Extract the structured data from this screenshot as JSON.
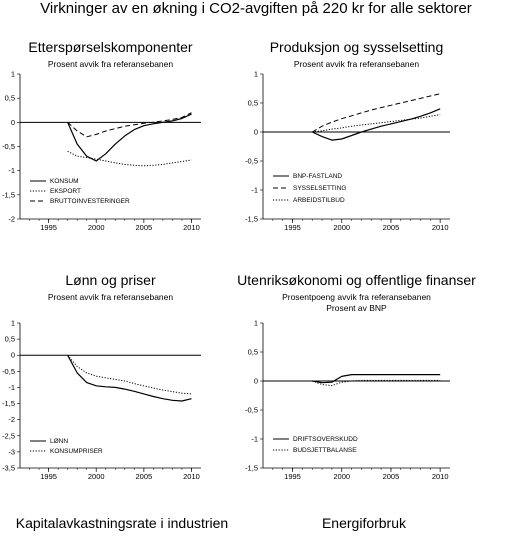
{
  "page_title": "Virkninger av en økning i CO2-avgiften på 220 kr for alle sektorer",
  "bottom_titles": [
    "Kapitalavkastningsrate i industrien",
    "Energiforbruk"
  ],
  "chart_data": [
    {
      "type": "line",
      "title": "Etterspørselskomponenter",
      "subtitle": "Prosent avvik fra referansebanen",
      "subtitle2": "",
      "xlabel": "",
      "ylabel": "",
      "xlim": [
        1992,
        2011
      ],
      "ylim": [
        -2,
        1
      ],
      "yticks": [
        "1",
        "0,5",
        "0",
        "-0,5",
        "-1",
        "-1,5",
        "-2"
      ],
      "ytick_values": [
        1,
        0.5,
        0,
        -0.5,
        -1,
        -1.5,
        -2
      ],
      "xticks": [
        1995,
        2000,
        2005,
        2010
      ],
      "legend_position": "bottom-left",
      "series": [
        {
          "name": "KONSUM",
          "style": "solid",
          "x": [
            1997,
            1998,
            1999,
            2000,
            2001,
            2002,
            2003,
            2004,
            2005,
            2006,
            2007,
            2008,
            2009,
            2010
          ],
          "y": [
            0,
            -0.45,
            -0.7,
            -0.8,
            -0.65,
            -0.45,
            -0.28,
            -0.15,
            -0.07,
            -0.03,
            0,
            0.03,
            0.08,
            0.17
          ]
        },
        {
          "name": "EKSPORT",
          "style": "dotted",
          "x": [
            1997,
            1998,
            1999,
            2000,
            2001,
            2002,
            2003,
            2004,
            2005,
            2006,
            2007,
            2008,
            2009,
            2010
          ],
          "y": [
            -0.6,
            -0.7,
            -0.73,
            -0.76,
            -0.8,
            -0.84,
            -0.87,
            -0.89,
            -0.9,
            -0.89,
            -0.87,
            -0.84,
            -0.81,
            -0.78
          ]
        },
        {
          "name": "BRUTTOINVESTERINGER",
          "style": "dashed",
          "x": [
            1997,
            1998,
            1999,
            2000,
            2001,
            2002,
            2003,
            2004,
            2005,
            2006,
            2007,
            2008,
            2009,
            2010
          ],
          "y": [
            0,
            -0.18,
            -0.3,
            -0.25,
            -0.18,
            -0.13,
            -0.08,
            -0.05,
            -0.02,
            0,
            0.03,
            0.06,
            0.1,
            0.2
          ]
        }
      ]
    },
    {
      "type": "line",
      "title": "Produksjon og sysselsetting",
      "subtitle": "Prosent avvik fra referansebanen",
      "subtitle2": "",
      "xlabel": "",
      "ylabel": "",
      "xlim": [
        1992,
        2011
      ],
      "ylim": [
        -1.5,
        1
      ],
      "yticks": [
        "1",
        "0,5",
        "0",
        "-0,5",
        "-1",
        "-1,5"
      ],
      "ytick_values": [
        1,
        0.5,
        0,
        -0.5,
        -1,
        -1.5
      ],
      "xticks": [
        1995,
        2000,
        2005,
        2010
      ],
      "legend_position": "bottom-left",
      "series": [
        {
          "name": "BNP-FASTLAND",
          "style": "solid",
          "x": [
            1997,
            1998,
            1999,
            2000,
            2001,
            2002,
            2003,
            2004,
            2005,
            2006,
            2007,
            2008,
            2009,
            2010
          ],
          "y": [
            0,
            -0.08,
            -0.14,
            -0.12,
            -0.06,
            0,
            0.05,
            0.1,
            0.14,
            0.18,
            0.22,
            0.27,
            0.33,
            0.4
          ]
        },
        {
          "name": "SYSSELSETTING",
          "style": "dashed",
          "x": [
            1997,
            1998,
            1999,
            2000,
            2001,
            2002,
            2003,
            2004,
            2005,
            2006,
            2007,
            2008,
            2009,
            2010
          ],
          "y": [
            0,
            0.1,
            0.17,
            0.23,
            0.28,
            0.33,
            0.38,
            0.42,
            0.46,
            0.5,
            0.54,
            0.58,
            0.62,
            0.66
          ]
        },
        {
          "name": "ARBEIDSTILBUD",
          "style": "dotted",
          "x": [
            1997,
            1998,
            1999,
            2000,
            2001,
            2002,
            2003,
            2004,
            2005,
            2006,
            2007,
            2008,
            2009,
            2010
          ],
          "y": [
            0,
            0.02,
            0.05,
            0.07,
            0.1,
            0.12,
            0.14,
            0.16,
            0.18,
            0.2,
            0.22,
            0.24,
            0.27,
            0.3
          ]
        }
      ]
    },
    {
      "type": "line",
      "title": "Lønn og priser",
      "subtitle": "Prosent avvik fra referansebanen",
      "subtitle2": "",
      "xlabel": "",
      "ylabel": "",
      "xlim": [
        1992,
        2011
      ],
      "ylim": [
        -3.5,
        1
      ],
      "yticks": [
        "1",
        "0,5",
        "0",
        "-0,5",
        "-1",
        "-1,5",
        "-2",
        "-2,5",
        "-3",
        "-3,5"
      ],
      "ytick_values": [
        1,
        0.5,
        0,
        -0.5,
        -1,
        -1.5,
        -2,
        -2.5,
        -3,
        -3.5
      ],
      "xticks": [
        1995,
        2000,
        2005,
        2010
      ],
      "legend_position": "bottom-left",
      "series": [
        {
          "name": "LØNN",
          "style": "solid",
          "x": [
            1997,
            1998,
            1999,
            2000,
            2001,
            2002,
            2003,
            2004,
            2005,
            2006,
            2007,
            2008,
            2009,
            2010
          ],
          "y": [
            0,
            -0.55,
            -0.85,
            -0.95,
            -0.98,
            -1.0,
            -1.05,
            -1.12,
            -1.2,
            -1.28,
            -1.35,
            -1.4,
            -1.42,
            -1.35
          ]
        },
        {
          "name": "KONSUMPRISER",
          "style": "dotted",
          "x": [
            1997,
            1998,
            1999,
            2000,
            2001,
            2002,
            2003,
            2004,
            2005,
            2006,
            2007,
            2008,
            2009,
            2010
          ],
          "y": [
            0,
            -0.35,
            -0.55,
            -0.65,
            -0.7,
            -0.75,
            -0.8,
            -0.88,
            -0.95,
            -1.02,
            -1.08,
            -1.13,
            -1.18,
            -1.2
          ]
        }
      ]
    },
    {
      "type": "line",
      "title": "Utenriksøkonomi og offentlige finanser",
      "subtitle": "Prosentpoeng avvik fra referansebanen",
      "subtitle2": "Prosent av BNP",
      "xlabel": "",
      "ylabel": "",
      "xlim": [
        1992,
        2011
      ],
      "ylim": [
        -1.5,
        1
      ],
      "yticks": [
        "1",
        "0,5",
        "0",
        "-0,5",
        "-1",
        "-1,5"
      ],
      "ytick_values": [
        1,
        0.5,
        0,
        -0.5,
        -1,
        -1.5
      ],
      "xticks": [
        1995,
        2000,
        2005,
        2010
      ],
      "legend_position": "bottom-left",
      "series": [
        {
          "name": "DRIFTSOVERSKUDD",
          "style": "solid",
          "x": [
            1997,
            1998,
            1999,
            2000,
            2001,
            2002,
            2003,
            2004,
            2005,
            2006,
            2007,
            2008,
            2009,
            2010
          ],
          "y": [
            0,
            -0.03,
            -0.02,
            0.08,
            0.11,
            0.11,
            0.11,
            0.11,
            0.11,
            0.11,
            0.11,
            0.11,
            0.11,
            0.11
          ]
        },
        {
          "name": "BUDSJETTBALANSE",
          "style": "dotted",
          "x": [
            1997,
            1998,
            1999,
            2000,
            2001,
            2002,
            2003,
            2004,
            2005,
            2006,
            2007,
            2008,
            2009,
            2010
          ],
          "y": [
            0,
            -0.06,
            -0.08,
            -0.02,
            0.0,
            0.01,
            0.01,
            0.01,
            0.01,
            0.01,
            0.01,
            0.01,
            0.01,
            0.01
          ]
        }
      ]
    }
  ]
}
